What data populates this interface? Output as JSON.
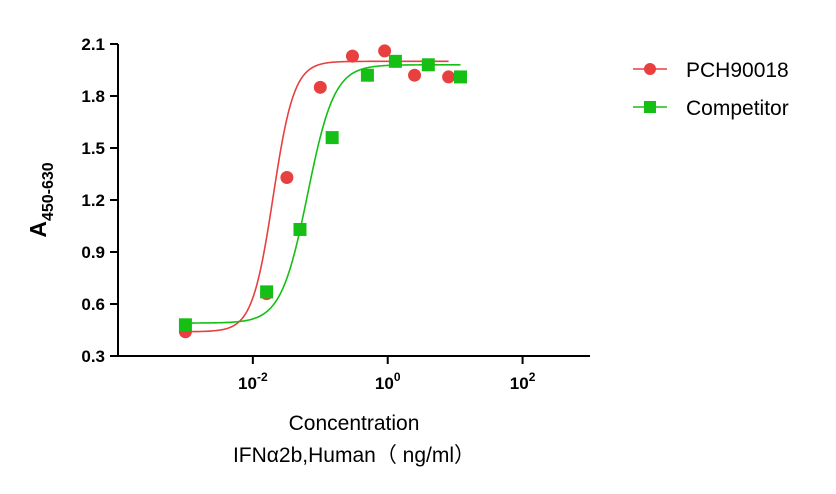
{
  "chart_data": {
    "type": "scatter",
    "title": "",
    "xlabel_line1": "Concentration",
    "xlabel_line2": "IFNα2b,Human（ ng/ml）",
    "ylabel_main": "A",
    "ylabel_sub": "450-630",
    "xscale": "log10",
    "xlim": [
      0.0001,
      1000
    ],
    "ylim": [
      0.3,
      2.1
    ],
    "yticks": [
      "0.3",
      "0.6",
      "0.9",
      "1.2",
      "1.5",
      "1.8",
      "2.1"
    ],
    "xticks": [
      {
        "base": "10",
        "exp": "-2",
        "value": 0.01
      },
      {
        "base": "10",
        "exp": "0",
        "value": 1
      },
      {
        "base": "10",
        "exp": "2",
        "value": 100
      }
    ],
    "legend_position": "right",
    "series": [
      {
        "name": "PCH90018",
        "color": "#e8403f",
        "marker": "circle",
        "x": [
          0.001,
          0.016,
          0.032,
          0.1,
          0.3,
          0.9,
          2.5,
          8
        ],
        "y": [
          0.44,
          0.66,
          1.33,
          1.85,
          2.03,
          2.06,
          1.92,
          1.91
        ],
        "fit": {
          "bottom": 0.44,
          "top": 2.0,
          "ec50": 0.02,
          "hill": 2.8
        }
      },
      {
        "name": "Competitor",
        "color": "#16bf16",
        "marker": "square",
        "x": [
          0.001,
          0.016,
          0.05,
          0.15,
          0.5,
          1.3,
          4,
          12
        ],
        "y": [
          0.48,
          0.67,
          1.03,
          1.56,
          1.92,
          2.0,
          1.98,
          1.91
        ],
        "fit": {
          "bottom": 0.49,
          "top": 1.98,
          "ec50": 0.065,
          "hill": 2.2
        }
      }
    ]
  }
}
